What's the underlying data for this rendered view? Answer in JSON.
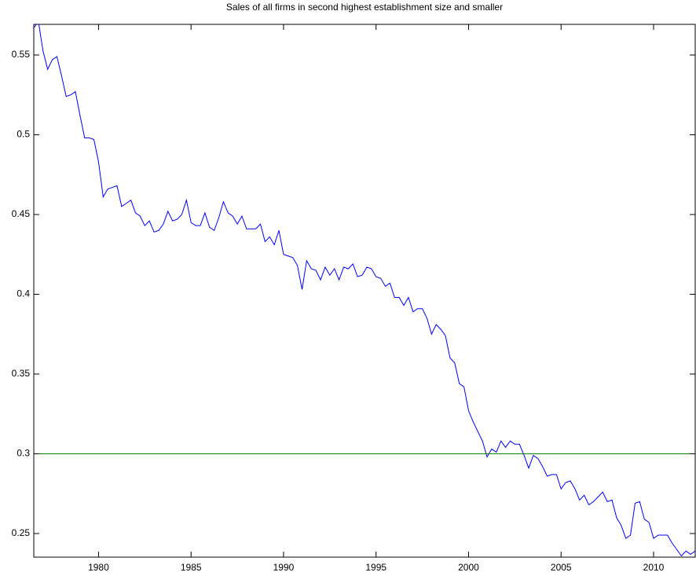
{
  "chart_data": {
    "type": "line",
    "title": "Sales of all firms in second highest establishment size and smaller",
    "x": [
      1976.5,
      1976.75,
      1977,
      1977.25,
      1977.5,
      1977.75,
      1978,
      1978.25,
      1978.5,
      1978.75,
      1979,
      1979.25,
      1979.5,
      1979.75,
      1980,
      1980.25,
      1980.5,
      1980.75,
      1981,
      1981.25,
      1981.5,
      1981.75,
      1982,
      1982.25,
      1982.5,
      1982.75,
      1983,
      1983.25,
      1983.5,
      1983.75,
      1984,
      1984.25,
      1984.5,
      1984.75,
      1985,
      1985.25,
      1985.5,
      1985.75,
      1986,
      1986.25,
      1986.5,
      1986.75,
      1987,
      1987.25,
      1987.5,
      1987.75,
      1988,
      1988.25,
      1988.5,
      1988.75,
      1989,
      1989.25,
      1989.5,
      1989.75,
      1990,
      1990.25,
      1990.5,
      1990.75,
      1991,
      1991.25,
      1991.5,
      1991.75,
      1992,
      1992.25,
      1992.5,
      1992.75,
      1993,
      1993.25,
      1993.5,
      1993.75,
      1994,
      1994.25,
      1994.5,
      1994.75,
      1995,
      1995.25,
      1995.5,
      1995.75,
      1996,
      1996.25,
      1996.5,
      1996.75,
      1997,
      1997.25,
      1997.5,
      1997.75,
      1998,
      1998.25,
      1998.5,
      1998.75,
      1999,
      1999.25,
      1999.5,
      1999.75,
      2000,
      2000.25,
      2000.5,
      2000.75,
      2001,
      2001.25,
      2001.5,
      2001.75,
      2002,
      2002.25,
      2002.5,
      2002.75,
      2003,
      2003.25,
      2003.5,
      2003.75,
      2004,
      2004.25,
      2004.5,
      2004.75,
      2005,
      2005.25,
      2005.5,
      2005.75,
      2006,
      2006.25,
      2006.5,
      2006.75,
      2007,
      2007.25,
      2007.5,
      2007.75,
      2008,
      2008.25,
      2008.5,
      2008.75,
      2009,
      2009.25,
      2009.5,
      2009.75,
      2010,
      2010.25,
      2010.5,
      2010.75,
      2011,
      2011.25,
      2011.5,
      2011.75,
      2012,
      2012.25
    ],
    "series": [
      {
        "color": "#0000ff",
        "values": [
          0.567,
          0.571,
          0.5525,
          0.541,
          0.547,
          0.549,
          0.537,
          0.524,
          0.525,
          0.527,
          0.512,
          0.498,
          0.498,
          0.497,
          0.483,
          0.461,
          0.466,
          0.467,
          0.468,
          0.455,
          0.457,
          0.459,
          0.451,
          0.449,
          0.443,
          0.446,
          0.439,
          0.44,
          0.444,
          0.452,
          0.446,
          0.447,
          0.45,
          0.459,
          0.445,
          0.443,
          0.443,
          0.451,
          0.442,
          0.44,
          0.448,
          0.458,
          0.451,
          0.449,
          0.444,
          0.449,
          0.441,
          0.441,
          0.441,
          0.444,
          0.433,
          0.436,
          0.431,
          0.44,
          0.425,
          0.424,
          0.423,
          0.418,
          0.403,
          0.421,
          0.416,
          0.415,
          0.409,
          0.417,
          0.412,
          0.416,
          0.409,
          0.417,
          0.416,
          0.419,
          0.411,
          0.412,
          0.417,
          0.416,
          0.411,
          0.41,
          0.405,
          0.407,
          0.398,
          0.398,
          0.393,
          0.398,
          0.389,
          0.391,
          0.391,
          0.385,
          0.375,
          0.381,
          0.378,
          0.374,
          0.36,
          0.357,
          0.344,
          0.342,
          0.327,
          0.32,
          0.314,
          0.308,
          0.298,
          0.303,
          0.301,
          0.308,
          0.304,
          0.308,
          0.306,
          0.306,
          0.299,
          0.291,
          0.299,
          0.297,
          0.292,
          0.286,
          0.287,
          0.287,
          0.278,
          0.282,
          0.283,
          0.278,
          0.271,
          0.274,
          0.268,
          0.27,
          0.273,
          0.276,
          0.27,
          0.271,
          0.26,
          0.255,
          0.247,
          0.249,
          0.269,
          0.27,
          0.259,
          0.257,
          0.247,
          0.249,
          0.249,
          0.249,
          0.244,
          0.24,
          0.236,
          0.239,
          0.237,
          0.239
        ]
      },
      {
        "color": "#008000",
        "x": [
          1976.5,
          2012.25
        ],
        "values": [
          0.3,
          0.3
        ]
      }
    ],
    "xlim": [
      1976.5,
      2012.25
    ],
    "ylim": [
      0.2352,
      0.5692
    ],
    "xticks": [
      1980,
      1985,
      1990,
      1995,
      2000,
      2005,
      2010
    ],
    "yticks": [
      0.25,
      0.3,
      0.35,
      0.4,
      0.45,
      0.5,
      0.55
    ]
  }
}
